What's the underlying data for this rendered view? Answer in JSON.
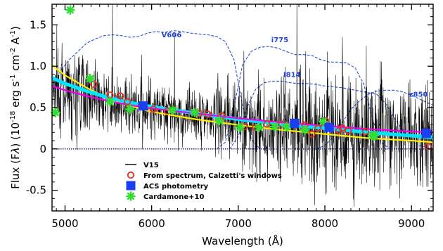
{
  "chart_data": {
    "type": "line",
    "xlabel": "Wavelength (Å)",
    "ylabel_parts": {
      "pre": "Flux (F",
      "lambda": "λ",
      "mid": ") (10",
      "sup1": "-18",
      "unit": " erg s",
      "sup2": "-1",
      "unit2": " cm",
      "sup3": "-2",
      "unit3": " A",
      "sup4": "-1",
      "end": ")"
    },
    "xlim": [
      4850,
      9250
    ],
    "ylim": [
      -0.75,
      1.75
    ],
    "xticks": [
      5000,
      6000,
      7000,
      8000,
      9000
    ],
    "ytick_labels": [
      {
        "value": 1.5,
        "text": "1.5"
      },
      {
        "value": 1.0,
        "text": "1.0"
      },
      {
        "value": 0.5,
        "text": "0.5"
      },
      {
        "value": 0.0,
        "text": "0"
      },
      {
        "value": -0.5,
        "text": "-0.5"
      }
    ],
    "grid": false,
    "legend_position": "lower-center",
    "legend": [
      {
        "key": "v15",
        "label": "V15",
        "marker": "line",
        "color": "#000000"
      },
      {
        "key": "spectrum",
        "label": "From spectrum, Calzetti's windows",
        "marker": "open-circle",
        "color": "#e03020"
      },
      {
        "key": "acs",
        "label": "ACS photometry",
        "marker": "square",
        "color": "#1a3ff0"
      },
      {
        "key": "cardamone",
        "label": "Cardamone+10",
        "marker": "star",
        "color": "#33dd33"
      }
    ],
    "filter_labels": [
      {
        "text": "V606",
        "x": 6230,
        "y": 1.35
      },
      {
        "text": "i775",
        "x": 7480,
        "y": 1.29
      },
      {
        "text": "I814",
        "x": 7620,
        "y": 0.87
      },
      {
        "text": "z850",
        "x": 9080,
        "y": 0.63
      }
    ],
    "filter_curves": [
      {
        "name": "V606",
        "points": [
          [
            4870,
            0.72
          ],
          [
            4950,
            0.95
          ],
          [
            5050,
            1.08
          ],
          [
            5150,
            1.18
          ],
          [
            5250,
            1.28
          ],
          [
            5350,
            1.33
          ],
          [
            5450,
            1.37
          ],
          [
            5550,
            1.38
          ],
          [
            5650,
            1.37
          ],
          [
            5750,
            1.35
          ],
          [
            5850,
            1.36
          ],
          [
            5950,
            1.4
          ],
          [
            6050,
            1.42
          ],
          [
            6150,
            1.41
          ],
          [
            6250,
            1.43
          ],
          [
            6350,
            1.42
          ],
          [
            6450,
            1.4
          ],
          [
            6550,
            1.39
          ],
          [
            6650,
            1.38
          ],
          [
            6750,
            1.36
          ],
          [
            6850,
            1.3
          ],
          [
            6950,
            1.08
          ],
          [
            7050,
            0.52
          ],
          [
            7150,
            0.12
          ],
          [
            7250,
            0.0
          ]
        ]
      },
      {
        "name": "i775",
        "points": [
          [
            6750,
            0.0
          ],
          [
            6850,
            0.08
          ],
          [
            6950,
            0.5
          ],
          [
            7050,
            1.02
          ],
          [
            7150,
            1.18
          ],
          [
            7250,
            1.23
          ],
          [
            7350,
            1.24
          ],
          [
            7450,
            1.22
          ],
          [
            7550,
            1.18
          ],
          [
            7650,
            1.14
          ],
          [
            7750,
            1.14
          ],
          [
            7850,
            1.13
          ],
          [
            7950,
            1.08
          ],
          [
            8050,
            1.05
          ],
          [
            8150,
            1.05
          ],
          [
            8250,
            1.04
          ],
          [
            8350,
            0.98
          ],
          [
            8450,
            0.78
          ],
          [
            8550,
            0.36
          ],
          [
            8650,
            0.08
          ],
          [
            8750,
            0.0
          ]
        ]
      },
      {
        "name": "I814",
        "points": [
          [
            6900,
            0.0
          ],
          [
            7000,
            0.15
          ],
          [
            7100,
            0.5
          ],
          [
            7200,
            0.72
          ],
          [
            7300,
            0.8
          ],
          [
            7400,
            0.82
          ],
          [
            7500,
            0.82
          ],
          [
            7600,
            0.8
          ],
          [
            7700,
            0.79
          ],
          [
            7800,
            0.79
          ],
          [
            7900,
            0.78
          ],
          [
            8000,
            0.76
          ],
          [
            8100,
            0.75
          ],
          [
            8200,
            0.74
          ],
          [
            8300,
            0.72
          ],
          [
            8400,
            0.7
          ],
          [
            8500,
            0.68
          ],
          [
            8600,
            0.66
          ],
          [
            8700,
            0.55
          ],
          [
            8800,
            0.38
          ],
          [
            8900,
            0.22
          ],
          [
            9000,
            0.1
          ],
          [
            9100,
            0.04
          ],
          [
            9200,
            0.01
          ]
        ]
      },
      {
        "name": "z850",
        "points": [
          [
            7900,
            0.0
          ],
          [
            8000,
            0.04
          ],
          [
            8100,
            0.15
          ],
          [
            8200,
            0.32
          ],
          [
            8300,
            0.48
          ],
          [
            8400,
            0.58
          ],
          [
            8500,
            0.66
          ],
          [
            8600,
            0.7
          ],
          [
            8700,
            0.71
          ],
          [
            8800,
            0.71
          ],
          [
            8900,
            0.69
          ],
          [
            9000,
            0.65
          ],
          [
            9100,
            0.6
          ],
          [
            9200,
            0.55
          ],
          [
            9250,
            0.53
          ]
        ]
      }
    ],
    "fit_curves": [
      {
        "color": "#ffee00",
        "width": 2.2,
        "points": [
          [
            4850,
            1.01
          ],
          [
            5000,
            0.89
          ],
          [
            5250,
            0.74
          ],
          [
            5500,
            0.61
          ],
          [
            5750,
            0.52
          ],
          [
            6000,
            0.45
          ],
          [
            6500,
            0.36
          ],
          [
            7000,
            0.29
          ],
          [
            7500,
            0.23
          ],
          [
            8000,
            0.18
          ],
          [
            8500,
            0.13
          ],
          [
            9000,
            0.1
          ],
          [
            9250,
            0.08
          ]
        ]
      },
      {
        "color": "#00e5ff",
        "width": 5,
        "points": [
          [
            4850,
            0.86
          ],
          [
            5000,
            0.79
          ],
          [
            5250,
            0.7
          ],
          [
            5500,
            0.62
          ],
          [
            5750,
            0.56
          ],
          [
            6000,
            0.51
          ],
          [
            6500,
            0.43
          ],
          [
            7000,
            0.36
          ],
          [
            7500,
            0.3
          ],
          [
            8000,
            0.25
          ],
          [
            8500,
            0.2
          ],
          [
            9000,
            0.16
          ],
          [
            9250,
            0.14
          ]
        ]
      },
      {
        "color": "#ee00ee",
        "width": 2.2,
        "points": [
          [
            4850,
            0.76
          ],
          [
            5000,
            0.71
          ],
          [
            5250,
            0.64
          ],
          [
            5500,
            0.58
          ],
          [
            5750,
            0.53
          ],
          [
            6000,
            0.49
          ],
          [
            6500,
            0.43
          ],
          [
            7000,
            0.37
          ],
          [
            7500,
            0.32
          ],
          [
            8000,
            0.28
          ],
          [
            8500,
            0.24
          ],
          [
            9000,
            0.21
          ],
          [
            9250,
            0.2
          ]
        ]
      }
    ],
    "acs_points": [
      [
        5900,
        0.52
      ],
      [
        7650,
        0.31
      ],
      [
        8050,
        0.26
      ],
      [
        9170,
        0.19
      ]
    ],
    "spectrum_points": [
      [
        5330,
        0.78
      ],
      [
        5520,
        0.65
      ],
      [
        5640,
        0.64
      ],
      [
        5720,
        0.57
      ],
      [
        5880,
        0.53
      ],
      [
        6020,
        0.48
      ],
      [
        6180,
        0.46
      ],
      [
        6550,
        0.43
      ],
      [
        6650,
        0.42
      ],
      [
        6810,
        0.4
      ],
      [
        7070,
        0.27
      ],
      [
        7200,
        0.26
      ],
      [
        7330,
        0.3
      ],
      [
        7500,
        0.3
      ],
      [
        7770,
        0.29
      ],
      [
        7850,
        0.18
      ],
      [
        7920,
        0.25
      ],
      [
        8010,
        0.34
      ],
      [
        8160,
        0.22
      ],
      [
        8200,
        0.25
      ],
      [
        8270,
        0.22
      ],
      [
        8470,
        0.21
      ],
      [
        9190,
        0.03
      ]
    ],
    "cardamone_points": [
      [
        4890,
        0.44
      ],
      [
        5060,
        1.68
      ],
      [
        5290,
        0.85
      ],
      [
        5520,
        0.57
      ],
      [
        5750,
        0.48
      ],
      [
        6240,
        0.47
      ],
      [
        6500,
        0.44
      ],
      [
        6780,
        0.34
      ],
      [
        7020,
        0.26
      ],
      [
        7240,
        0.26
      ],
      [
        7420,
        0.27
      ],
      [
        7560,
        0.27
      ],
      [
        7770,
        0.23
      ],
      [
        7980,
        0.33
      ],
      [
        8550,
        0.16
      ],
      [
        8570,
        0.16
      ]
    ],
    "spectrum_noise": {
      "x_start": 4860,
      "x_end": 9240,
      "step": 3,
      "seed": 7
    }
  }
}
